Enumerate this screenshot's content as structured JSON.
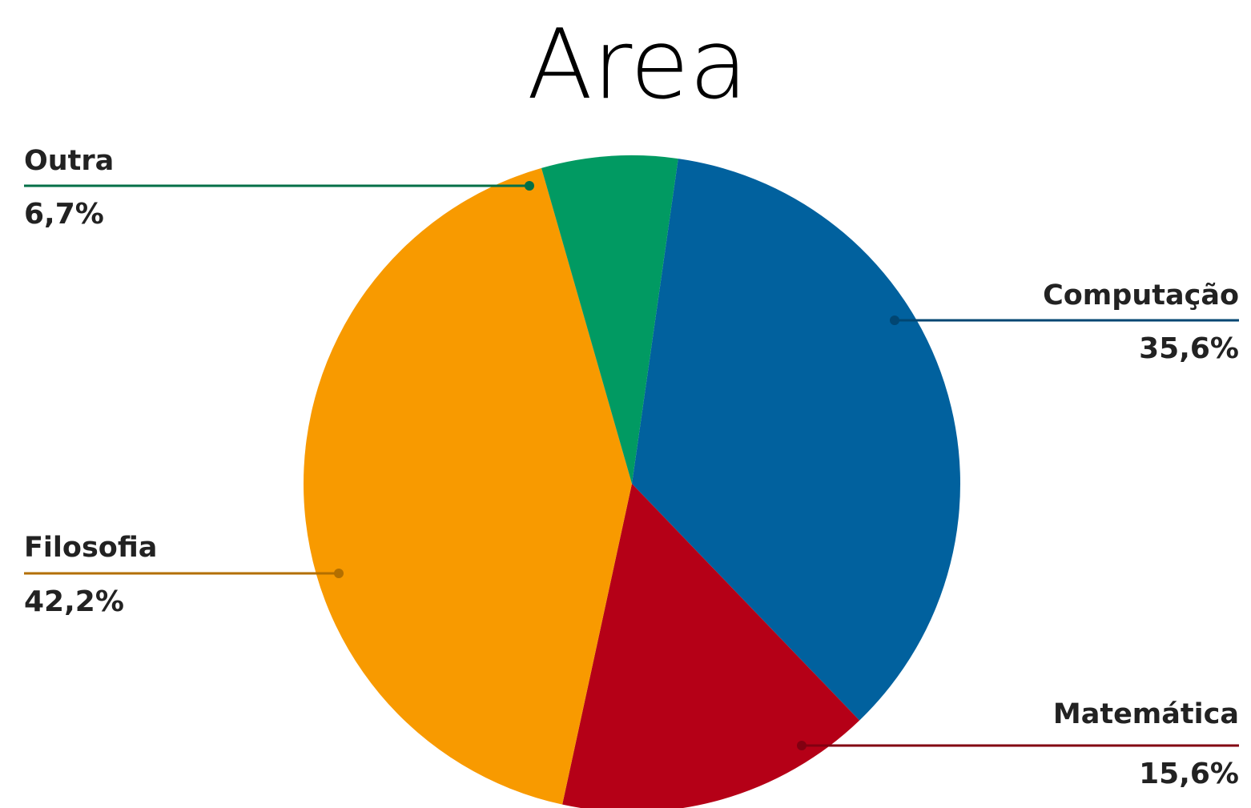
{
  "chart_data": {
    "type": "pie",
    "title": "Area",
    "slices": [
      {
        "label": "Computação",
        "value": 35.6,
        "value_label": "35,6%",
        "color": "#01619e"
      },
      {
        "label": "Matemática",
        "value": 15.6,
        "value_label": "15,6%",
        "color": "#b50017"
      },
      {
        "label": "Filosofia",
        "value": 42.2,
        "value_label": "42,2%",
        "color": "#f89a00"
      },
      {
        "label": "Outra",
        "value": 6.7,
        "value_label": "6,7%",
        "color": "#019a62"
      }
    ],
    "start_angle_deg": 8.1,
    "direction": "clockwise",
    "label_placement": "outside-with-leader-lines"
  }
}
